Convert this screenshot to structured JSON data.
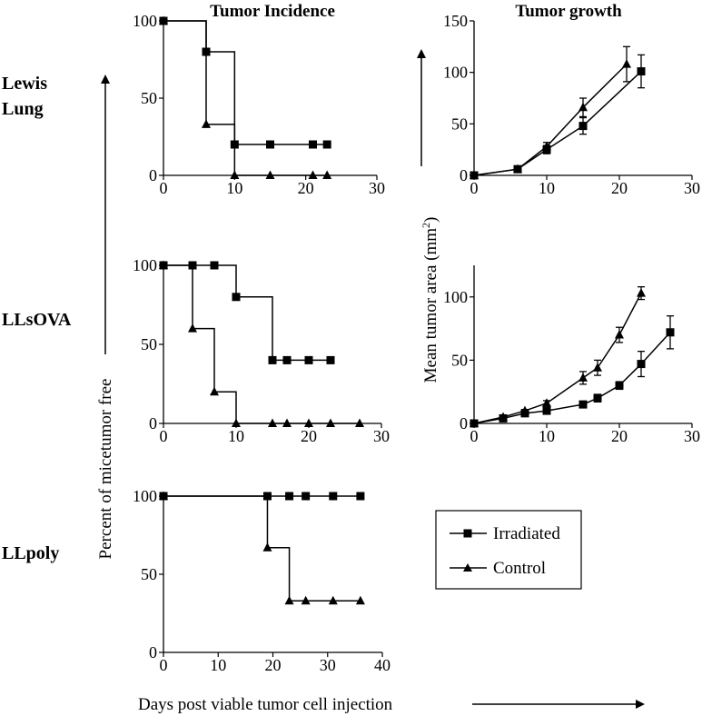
{
  "figure": {
    "col_titles": [
      "Tumor Incidence",
      "Tumor growth"
    ],
    "row_labels": [
      [
        "Lewis",
        "Lung"
      ],
      [
        "LLsOVA"
      ],
      [
        "LLpoly"
      ]
    ],
    "left_axis_label": "Percent  of micetumor free",
    "right_axis_label_main": "Mean tumor area (mm",
    "right_axis_label_sup": "2",
    "right_axis_label_end": ")",
    "bottom_axis_label": "Days post viable tumor cell injection",
    "legend": {
      "irradiated": "Irradiated",
      "control": "Control"
    }
  },
  "chart_data": [
    {
      "id": "lewis-incidence",
      "type": "line",
      "step": true,
      "xlim": [
        0,
        30
      ],
      "ylim": [
        0,
        100
      ],
      "xticks": [
        0,
        10,
        20,
        30
      ],
      "yticks": [
        0,
        50,
        100
      ],
      "series": [
        {
          "name": "Irradiated",
          "marker": "square",
          "x": [
            0,
            6,
            10,
            15,
            21,
            23
          ],
          "y": [
            100,
            80,
            20,
            20,
            20,
            20
          ]
        },
        {
          "name": "Control",
          "marker": "triangle",
          "x": [
            0,
            6,
            10,
            15,
            21,
            23
          ],
          "y": [
            100,
            33,
            0,
            0,
            0,
            0
          ]
        }
      ]
    },
    {
      "id": "lewis-growth",
      "type": "line",
      "xlim": [
        0,
        30
      ],
      "ylim": [
        0,
        150
      ],
      "xticks": [
        0,
        10,
        20,
        30
      ],
      "yticks": [
        0,
        50,
        100,
        150
      ],
      "series": [
        {
          "name": "Irradiated",
          "marker": "square",
          "x": [
            0,
            6,
            10,
            15,
            23
          ],
          "y": [
            0,
            6,
            25,
            48,
            101
          ],
          "err": [
            0,
            0,
            4,
            8,
            16
          ]
        },
        {
          "name": "Control",
          "marker": "triangle",
          "x": [
            0,
            6,
            10,
            15,
            21
          ],
          "y": [
            0,
            6,
            28,
            66,
            108
          ],
          "err": [
            0,
            0,
            4,
            9,
            17
          ]
        }
      ]
    },
    {
      "id": "llsova-incidence",
      "type": "line",
      "step": true,
      "xlim": [
        0,
        30
      ],
      "ylim": [
        0,
        100
      ],
      "xticks": [
        0,
        10,
        20,
        30
      ],
      "yticks": [
        0,
        50,
        100
      ],
      "series": [
        {
          "name": "Irradiated",
          "marker": "square",
          "x": [
            0,
            4,
            7,
            10,
            15,
            17,
            20,
            23
          ],
          "y": [
            100,
            100,
            100,
            80,
            40,
            40,
            40,
            40
          ]
        },
        {
          "name": "Control",
          "marker": "triangle",
          "x": [
            0,
            4,
            7,
            10,
            15,
            17,
            20,
            23,
            27
          ],
          "y": [
            100,
            60,
            20,
            0,
            0,
            0,
            0,
            0,
            0
          ]
        }
      ]
    },
    {
      "id": "llsova-growth",
      "type": "line",
      "xlim": [
        0,
        30
      ],
      "ylim": [
        0,
        125
      ],
      "xticks": [
        0,
        10,
        20,
        30
      ],
      "yticks": [
        0,
        50,
        100
      ],
      "series": [
        {
          "name": "Irradiated",
          "marker": "square",
          "x": [
            0,
            4,
            7,
            10,
            15,
            17,
            20,
            23,
            27
          ],
          "y": [
            0,
            4,
            8,
            10,
            15,
            20,
            30,
            47,
            72
          ],
          "err": [
            0,
            0,
            0,
            1,
            2,
            3,
            3,
            10,
            13
          ]
        },
        {
          "name": "Control",
          "marker": "triangle",
          "x": [
            0,
            4,
            7,
            10,
            15,
            17,
            20,
            23
          ],
          "y": [
            0,
            5,
            10,
            16,
            36,
            44,
            70,
            103
          ],
          "err": [
            0,
            0,
            1,
            2,
            5,
            6,
            6,
            5
          ]
        }
      ]
    },
    {
      "id": "llpoly-incidence",
      "type": "line",
      "step": true,
      "xlim": [
        0,
        40
      ],
      "ylim": [
        0,
        100
      ],
      "xticks": [
        0,
        10,
        20,
        30,
        40
      ],
      "yticks": [
        0,
        50,
        100
      ],
      "series": [
        {
          "name": "Irradiated",
          "marker": "square",
          "x": [
            0,
            19,
            23,
            26,
            31,
            36
          ],
          "y": [
            100,
            100,
            100,
            100,
            100,
            100
          ]
        },
        {
          "name": "Control",
          "marker": "triangle",
          "x": [
            0,
            19,
            23,
            26,
            31,
            36
          ],
          "y": [
            100,
            67,
            33,
            33,
            33,
            33
          ]
        }
      ]
    }
  ]
}
